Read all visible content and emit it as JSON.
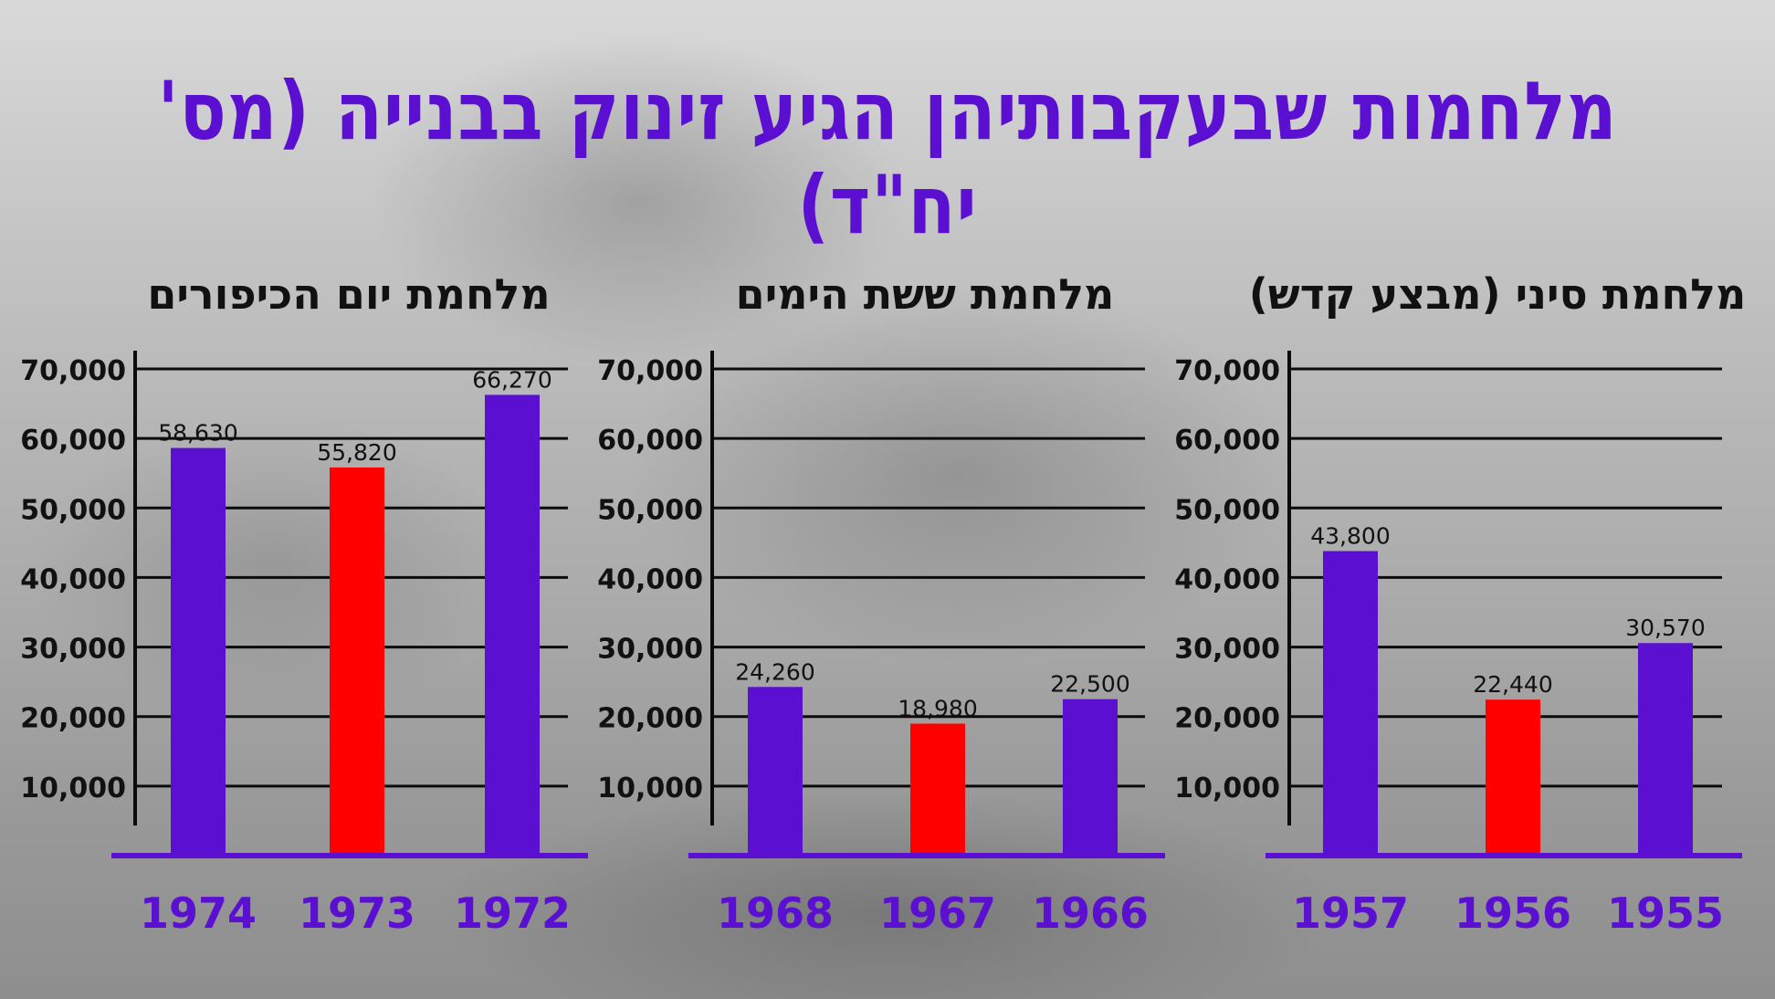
{
  "title": "מלחמות שבעקבותיהן הגיע זינוק בבנייה (מס' יח\"ד)",
  "colors": {
    "bar": "#5b0fd0",
    "highlight": "#ff0000",
    "title": "#5b0fd0",
    "axis_year": "#5b0fd0"
  },
  "chart_data": [
    {
      "type": "bar",
      "title": "מלחמת יום הכיפורים",
      "categories": [
        "1974",
        "1973",
        "1972"
      ],
      "values": [
        58630,
        55820,
        66270
      ],
      "value_labels": [
        "58,630",
        "55,820",
        "66,270"
      ],
      "highlight": [
        false,
        true,
        false
      ],
      "yticks": [
        "10,000",
        "20,000",
        "30,000",
        "40,000",
        "50,000",
        "60,000",
        "70,000"
      ],
      "ylim": [
        0,
        70000
      ],
      "grid": true
    },
    {
      "type": "bar",
      "title": "מלחמת ששת הימים",
      "categories": [
        "1968",
        "1967",
        "1966"
      ],
      "values": [
        24260,
        18980,
        22500
      ],
      "value_labels": [
        "24,260",
        "18,980",
        "22,500"
      ],
      "highlight": [
        false,
        true,
        false
      ],
      "yticks": [
        "10,000",
        "20,000",
        "30,000",
        "40,000",
        "50,000",
        "60,000",
        "70,000"
      ],
      "ylim": [
        0,
        70000
      ],
      "grid": true
    },
    {
      "type": "bar",
      "title": "מלחמת סיני (מבצע קדש)",
      "categories": [
        "1957",
        "1956",
        "1955"
      ],
      "values": [
        43800,
        22440,
        30570
      ],
      "value_labels": [
        "43,800",
        "22,440",
        "30,570"
      ],
      "highlight": [
        false,
        true,
        false
      ],
      "yticks": [
        "10,000",
        "20,000",
        "30,000",
        "40,000",
        "50,000",
        "60,000",
        "70,000"
      ],
      "ylim": [
        0,
        70000
      ],
      "grid": true
    }
  ]
}
